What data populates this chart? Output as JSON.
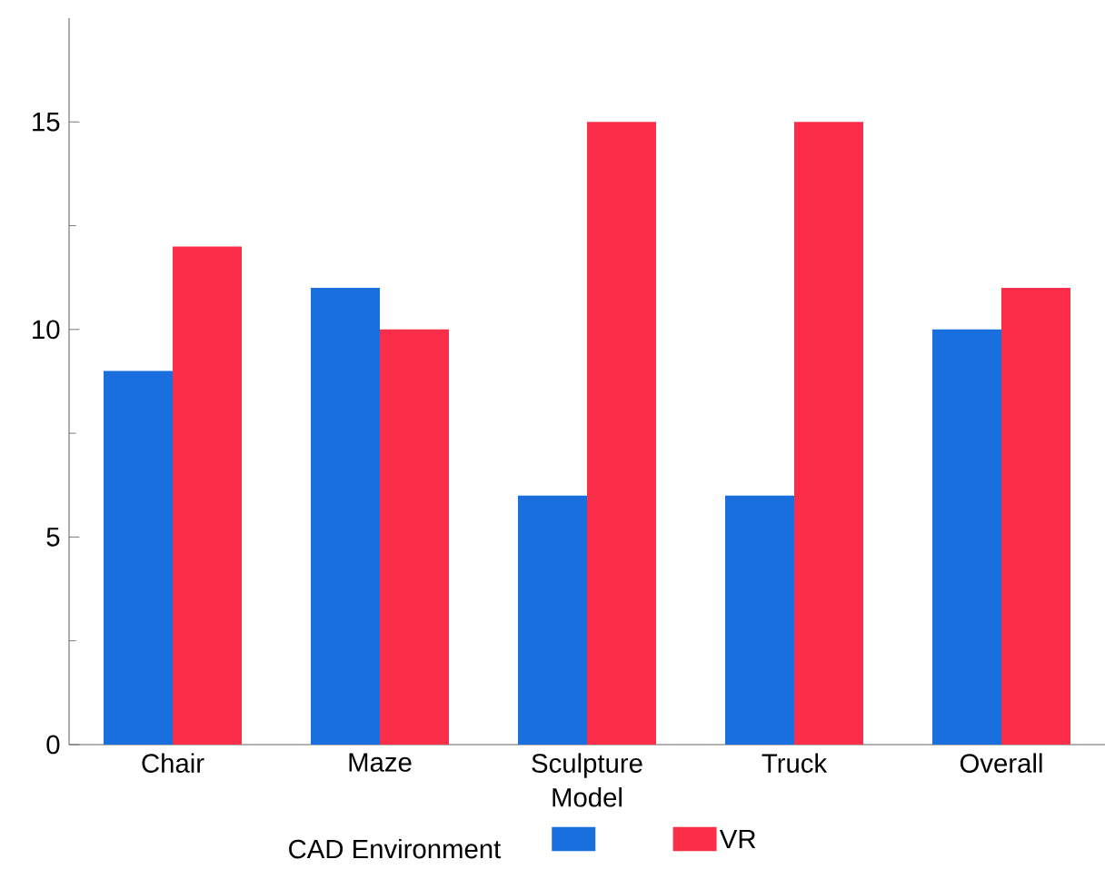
{
  "chart_data": {
    "type": "bar",
    "xlabel": "Model",
    "legend_title": "CAD Environment",
    "legend": "bottom",
    "categories": [
      "Chair",
      "Maze",
      "Sculpture",
      "Truck",
      "Overall"
    ],
    "series": [
      {
        "color": "#1a6fdf",
        "values": [
          9,
          11,
          6,
          6,
          10
        ]
      },
      {
        "name": "VR",
        "color": "#fb2e49",
        "values": [
          12,
          10,
          15,
          15,
          11
        ]
      }
    ],
    "ylim": [
      0,
      17.5
    ],
    "yticks": [
      0,
      5,
      10,
      15
    ],
    "grid": false
  }
}
